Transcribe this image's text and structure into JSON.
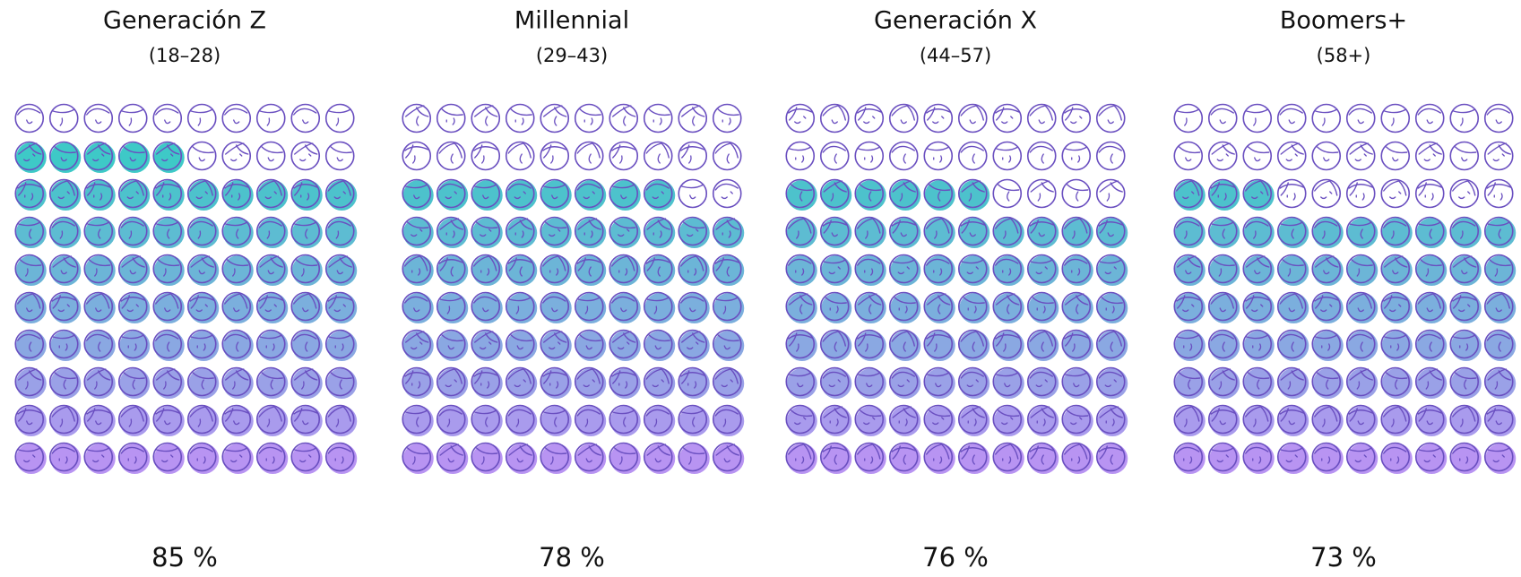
{
  "chart_data": [
    {
      "type": "waffle",
      "title": "Generación Z",
      "subtitle": "(18–28)",
      "values": [
        85
      ],
      "value_labels": [
        "85 %"
      ],
      "color_top": "#3ec9c7",
      "color_bottom": "#b894f2",
      "outline": "#6a4fc0"
    },
    {
      "type": "waffle",
      "title": "Millennial",
      "subtitle": "(29–43)",
      "values": [
        78
      ],
      "value_labels": [
        "78 %"
      ],
      "color_top": "#3ec9c7",
      "color_bottom": "#b894f2",
      "outline": "#6a4fc0"
    },
    {
      "type": "waffle",
      "title": "Generación X",
      "subtitle": "(44–57)",
      "values": [
        76
      ],
      "value_labels": [
        "76 %"
      ],
      "color_top": "#3ec9c7",
      "color_bottom": "#b894f2",
      "outline": "#6a4fc0"
    },
    {
      "type": "waffle",
      "title": "Boomers+",
      "subtitle": "(58+)",
      "values": [
        73
      ],
      "value_labels": [
        "73 %"
      ],
      "color_top": "#3ec9c7",
      "color_bottom": "#b894f2",
      "outline": "#6a4fc0"
    }
  ]
}
